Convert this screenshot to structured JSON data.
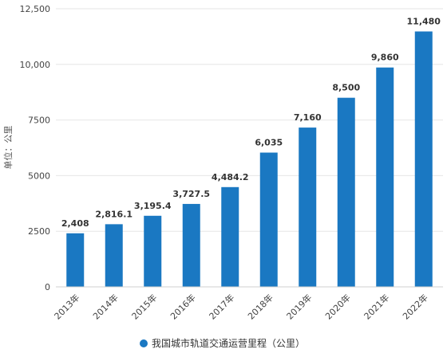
{
  "chart_data": {
    "type": "bar",
    "categories": [
      "2013年",
      "2014年",
      "2015年",
      "2016年",
      "2017年",
      "2018年",
      "2019年",
      "2020年",
      "2021年",
      "2022年"
    ],
    "series": [
      {
        "name": "我国城市轨道交通运营里程（公里）",
        "values": [
          2408,
          2816.1,
          3195.4,
          3727.5,
          4484.2,
          6035,
          7160,
          8500,
          9860,
          11480
        ],
        "labels": [
          "2,408",
          "2,816.1",
          "3,195.4",
          "3,727.5",
          "4,484.2",
          "6,035",
          "7,160",
          "8,500",
          "9,860",
          "11,480"
        ],
        "color": "#1a78c2"
      }
    ],
    "ylabel": "单位：公里",
    "ylim": [
      0,
      12500
    ],
    "yticks": [
      0,
      2500,
      5000,
      7500,
      10000,
      12500
    ],
    "ytick_labels": [
      "0",
      "2500",
      "5000",
      "7500",
      "10,000",
      "12,500"
    ],
    "grid": true,
    "legend_position": "bottom-center"
  }
}
